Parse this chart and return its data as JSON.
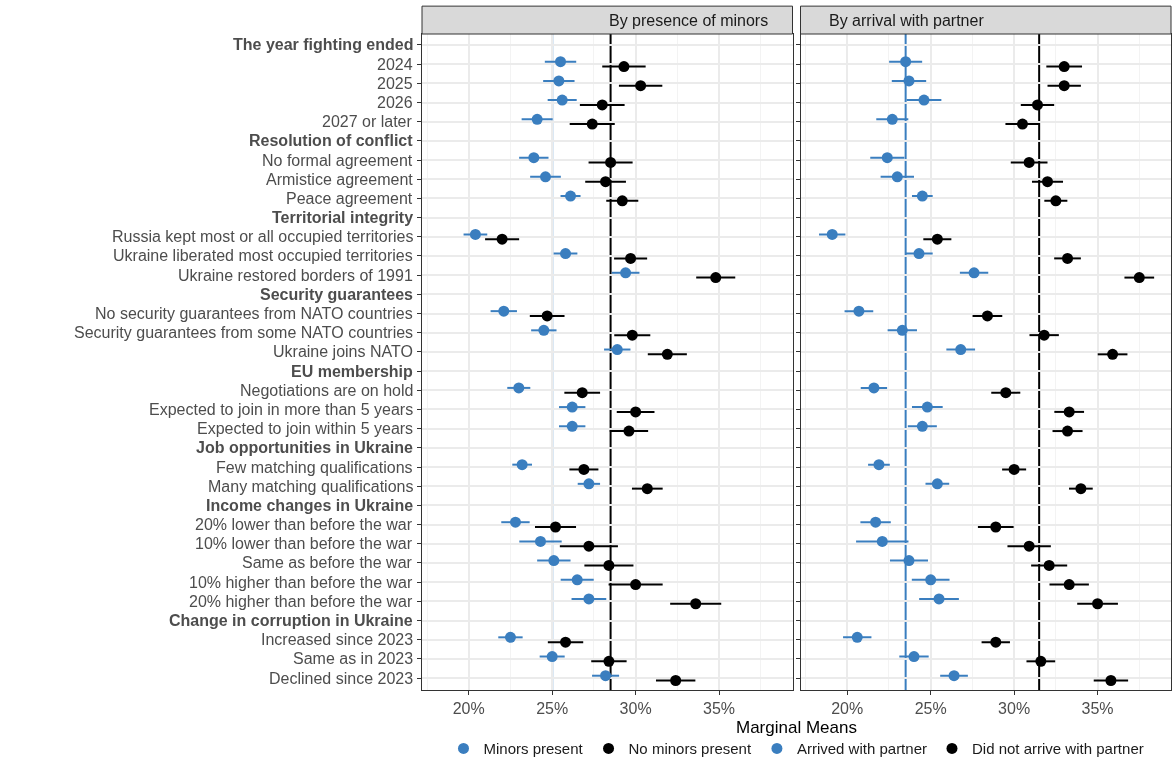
{
  "chart_data": [
    {
      "type": "scatter",
      "title": "By presence of minors",
      "orientation": "horizontal",
      "xlabel": "Marginal Means",
      "categories": [
        "The year fighting ended",
        "2024",
        "2025",
        "2026",
        "2027 or later",
        "Resolution of conflict",
        "No formal agreement",
        "Armistice agreement",
        "Peace agreement",
        "Territorial integrity",
        "Russia kept most or all occupied territories",
        "Ukraine liberated most occupied territories",
        "Ukraine restored borders of 1991",
        "Security guarantees",
        "No security guarantees from NATO countries",
        "Security guarantees from some NATO countries",
        "Ukraine joins NATO",
        "EU membership",
        "Negotiations are on hold",
        "Expected to join in more than 5 years",
        "Expected to join within 5 years",
        "Job opportunities in Ukraine",
        "Few matching qualifications",
        "Many matching qualifications",
        "Income changes in Ukraine",
        "20% lower than before the war",
        "10% lower than before the war",
        "Same as before the war",
        "10% higher than before the war",
        "20% higher than before the war",
        "Change in corruption in Ukraine",
        "Increased since 2023",
        "Same as in 2023",
        "Declined since 2023"
      ],
      "xlim": [
        17.2,
        39.4
      ],
      "xticks": [
        {
          "value": 20,
          "label": "20%"
        },
        {
          "value": 25,
          "label": "25%"
        },
        {
          "value": 30,
          "label": "30%"
        },
        {
          "value": 35,
          "label": "35%"
        }
      ],
      "series": [
        {
          "name": "Minors present",
          "color": "#3a7ebf",
          "values": [
            null,
            25.5,
            25.4,
            25.6,
            24.1,
            null,
            23.9,
            24.6,
            26.1,
            null,
            20.4,
            25.8,
            29.4,
            null,
            22.1,
            24.5,
            28.9,
            null,
            23.0,
            26.2,
            26.2,
            null,
            23.2,
            27.2,
            null,
            22.8,
            24.3,
            25.1,
            26.5,
            27.2,
            null,
            22.5,
            25.0,
            28.2
          ],
          "errors": [
            null,
            0.94,
            0.94,
            0.87,
            0.93,
            null,
            0.88,
            0.92,
            0.6,
            null,
            0.71,
            0.71,
            0.83,
            null,
            0.79,
            0.76,
            0.79,
            null,
            0.69,
            0.79,
            0.79,
            null,
            0.59,
            0.67,
            null,
            0.85,
            1.27,
            1.0,
            0.99,
            1.04,
            null,
            0.73,
            0.75,
            0.81
          ]
        },
        {
          "name": "No minors present",
          "color": "#000000",
          "values": [
            null,
            29.3,
            30.3,
            28.0,
            27.4,
            null,
            28.5,
            28.2,
            29.2,
            null,
            22.0,
            29.7,
            34.8,
            null,
            24.7,
            29.8,
            31.9,
            null,
            26.8,
            30.0,
            29.6,
            null,
            26.9,
            30.7,
            null,
            25.2,
            27.2,
            28.4,
            30.0,
            33.6,
            null,
            25.8,
            28.4,
            32.4
          ],
          "errors": [
            null,
            1.3,
            1.3,
            1.34,
            1.35,
            null,
            1.32,
            1.22,
            0.96,
            null,
            1.02,
            0.99,
            1.17,
            null,
            1.04,
            1.08,
            1.17,
            null,
            1.07,
            1.13,
            1.15,
            null,
            0.87,
            0.92,
            null,
            1.23,
            1.74,
            1.47,
            1.62,
            1.53,
            null,
            1.06,
            1.06,
            1.18
          ]
        }
      ],
      "ref_lines": [
        {
          "axis": "x",
          "value": 25.0,
          "color": "#3a7ebf"
        },
        {
          "axis": "x",
          "value": 28.5,
          "color": "#000000"
        }
      ],
      "grid": true,
      "legend": "bottom",
      "marker": "circle"
    },
    {
      "type": "scatter",
      "title": "By arrival with partner",
      "orientation": "horizontal",
      "tick_labels": "x",
      "categories": [
        "The year fighting ended",
        "2024",
        "2025",
        "2026",
        "2027 or later",
        "Resolution of conflict",
        "No formal agreement",
        "Armistice agreement",
        "Peace agreement",
        "Territorial integrity",
        "Russia kept most or all occupied territories",
        "Ukraine liberated most occupied territories",
        "Ukraine restored borders of 1991",
        "Security guarantees",
        "No security guarantees from NATO countries",
        "Security guarantees from some NATO countries",
        "Ukraine joins NATO",
        "EU membership",
        "Negotiations are on hold",
        "Expected to join in more than 5 years",
        "Expected to join within 5 years",
        "Job opportunities in Ukraine",
        "Few matching qualifications",
        "Many matching qualifications",
        "Income changes in Ukraine",
        "20% lower than before the war",
        "10% lower than before the war",
        "Same as before the war",
        "10% higher than before the war",
        "20% higher than before the war",
        "Change in corruption in Ukraine",
        "Increased since 2023",
        "Same as in 2023",
        "Declined since 2023"
      ],
      "xlim": [
        17.2,
        39.4
      ],
      "xticks": [
        {
          "value": 20,
          "label": "20%"
        },
        {
          "value": 25,
          "label": "25%"
        },
        {
          "value": 30,
          "label": "30%"
        },
        {
          "value": 35,
          "label": "35%"
        }
      ],
      "series": [
        {
          "name": "Arrived with partner",
          "color": "#3a7ebf",
          "values": [
            null,
            23.5,
            23.7,
            24.6,
            22.7,
            null,
            22.4,
            23.0,
            24.5,
            null,
            19.1,
            24.3,
            27.6,
            null,
            20.7,
            23.3,
            26.8,
            null,
            21.6,
            24.8,
            24.5,
            null,
            21.9,
            25.4,
            null,
            21.7,
            22.1,
            23.7,
            25.0,
            25.5,
            null,
            20.6,
            24.0,
            26.4
          ],
          "errors": [
            null,
            0.99,
            1.03,
            1.04,
            0.96,
            null,
            1.02,
            1.0,
            0.62,
            null,
            0.79,
            0.82,
            0.85,
            null,
            0.86,
            0.88,
            0.86,
            null,
            0.79,
            0.92,
            0.87,
            null,
            0.65,
            0.71,
            null,
            0.91,
            1.57,
            1.14,
            1.13,
            1.19,
            null,
            0.85,
            0.88,
            0.83
          ]
        },
        {
          "name": "Did not arrive with partner",
          "color": "#000000",
          "values": [
            null,
            33.0,
            33.0,
            31.4,
            30.5,
            null,
            30.9,
            32.0,
            32.5,
            null,
            25.4,
            33.2,
            37.5,
            null,
            28.4,
            31.8,
            35.9,
            null,
            29.5,
            33.3,
            33.2,
            null,
            30.0,
            34.0,
            null,
            28.9,
            30.9,
            32.1,
            33.3,
            35.0,
            null,
            28.9,
            31.6,
            35.8
          ],
          "errors": [
            null,
            1.07,
            1.0,
            1.0,
            1.02,
            null,
            1.1,
            0.93,
            0.69,
            null,
            0.84,
            0.8,
            0.89,
            null,
            0.89,
            0.88,
            0.89,
            null,
            0.87,
            0.89,
            0.9,
            null,
            0.72,
            0.71,
            null,
            1.07,
            1.3,
            1.08,
            1.18,
            1.22,
            null,
            0.85,
            0.86,
            1.03
          ]
        }
      ],
      "ref_lines": [
        {
          "axis": "x",
          "value": 23.5,
          "color": "#3a7ebf"
        },
        {
          "axis": "x",
          "value": 31.5,
          "color": "#000000"
        }
      ],
      "grid": true,
      "legend": "bottom",
      "marker": "circle"
    }
  ]
}
